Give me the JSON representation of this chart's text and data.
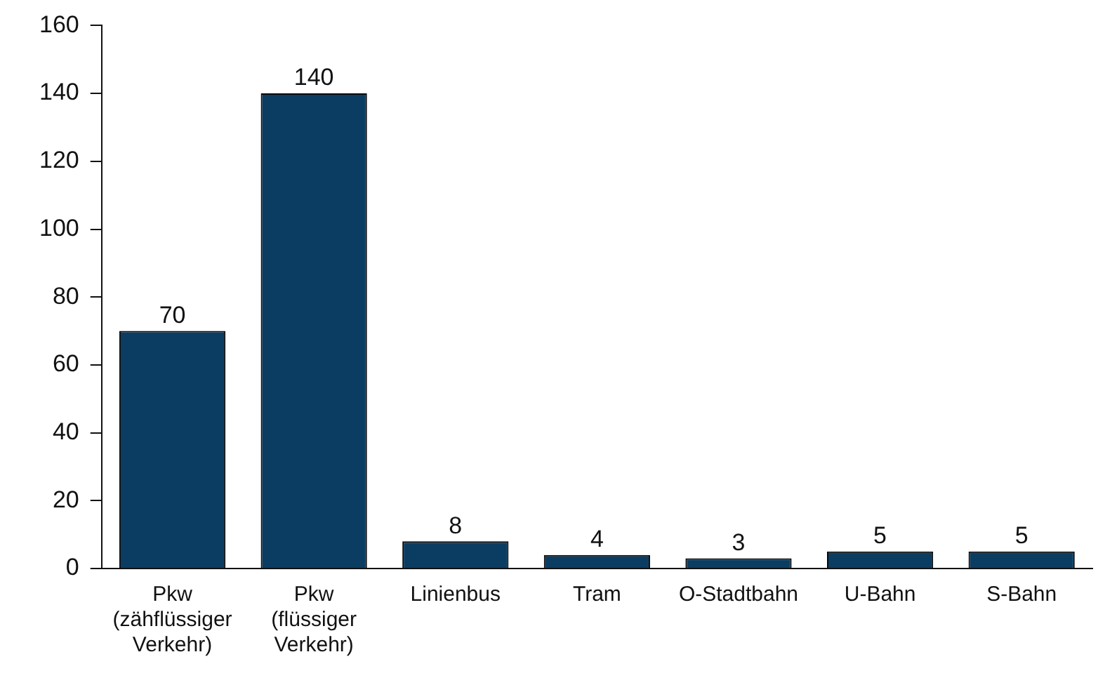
{
  "chart_data": {
    "type": "bar",
    "categories": [
      "Pkw (zähflüssiger Verkehr)",
      "Pkw (flüssiger Verkehr)",
      "Linienbus",
      "Tram",
      "O-Stadtbahn",
      "U-Bahn",
      "S-Bahn"
    ],
    "values": [
      70,
      140,
      8,
      4,
      3,
      5,
      5
    ],
    "color": "#0b3d62",
    "ylim": [
      0,
      160
    ],
    "yticks": [
      0,
      20,
      40,
      60,
      80,
      100,
      120,
      140,
      160
    ],
    "grid": false,
    "legend": false,
    "data_labels": true
  }
}
